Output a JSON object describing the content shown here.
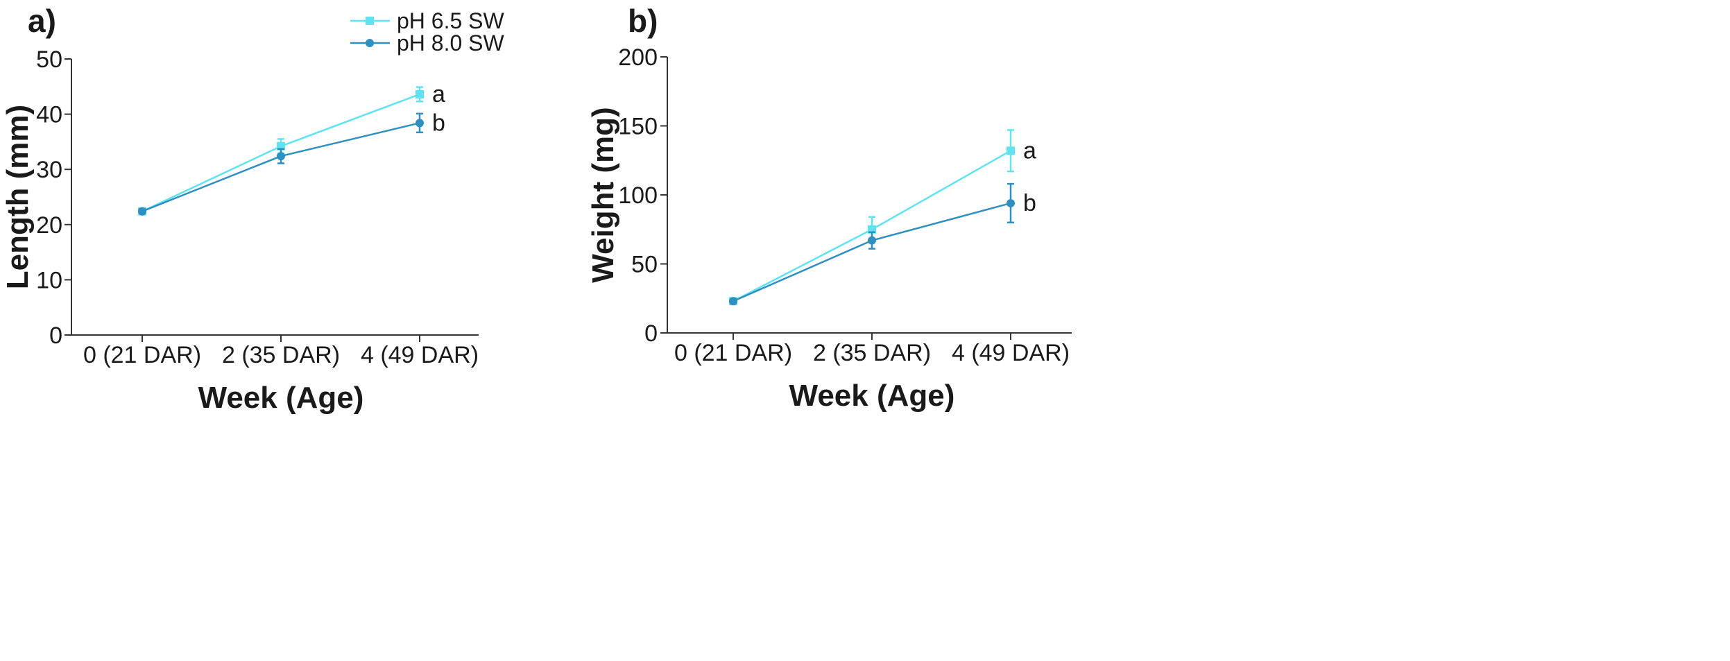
{
  "colors": {
    "ph65": "#5fe3f0",
    "ph80": "#2f8fc1",
    "axis": "#333333",
    "text": "#1a1a1a"
  },
  "legend": {
    "items": [
      {
        "label": "pH 6.5 SW",
        "series": "ph65",
        "marker": "square"
      },
      {
        "label": "pH 8.0 SW",
        "series": "ph80",
        "marker": "circle"
      }
    ]
  },
  "chart_data": [
    {
      "type": "line",
      "panel_label": "a)",
      "title": "",
      "xlabel": "Week (Age)",
      "ylabel": "Length (mm)",
      "categories": [
        "0 (21 DAR)",
        "2 (35 DAR)",
        "4 (49 DAR)"
      ],
      "ylim": [
        0,
        50
      ],
      "yticks": [
        0,
        10,
        20,
        30,
        40,
        50
      ],
      "series": [
        {
          "key": "ph65",
          "name": "pH 6.5 SW",
          "marker": "square",
          "values": [
            22.4,
            34.2,
            43.6
          ],
          "errors": [
            0.4,
            1.3,
            1.3
          ]
        },
        {
          "key": "ph80",
          "name": "pH 8.0 SW",
          "marker": "circle",
          "values": [
            22.4,
            32.4,
            38.4
          ],
          "errors": [
            0.4,
            1.3,
            1.7
          ]
        }
      ],
      "annotations": [
        {
          "series": "ph65",
          "index": 2,
          "text": "a"
        },
        {
          "series": "ph80",
          "index": 2,
          "text": "b"
        }
      ]
    },
    {
      "type": "line",
      "panel_label": "b)",
      "title": "",
      "xlabel": "Week (Age)",
      "ylabel": "Weight (mg)",
      "categories": [
        "0 (21 DAR)",
        "2 (35 DAR)",
        "4 (49 DAR)"
      ],
      "ylim": [
        0,
        200
      ],
      "yticks": [
        0,
        50,
        100,
        150,
        200
      ],
      "series": [
        {
          "key": "ph65",
          "name": "pH 6.5 SW",
          "marker": "square",
          "values": [
            23,
            75,
            132
          ],
          "errors": [
            1.5,
            9,
            15
          ]
        },
        {
          "key": "ph80",
          "name": "pH 8.0 SW",
          "marker": "circle",
          "values": [
            23,
            67,
            94
          ],
          "errors": [
            1.5,
            6,
            14
          ]
        }
      ],
      "annotations": [
        {
          "series": "ph65",
          "index": 2,
          "text": "a"
        },
        {
          "series": "ph80",
          "index": 2,
          "text": "b"
        }
      ]
    }
  ]
}
